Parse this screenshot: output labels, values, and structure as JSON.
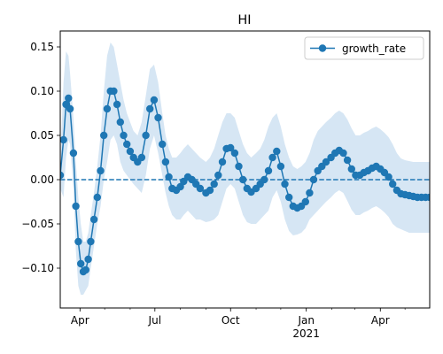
{
  "chart_data": {
    "type": "line",
    "title": "HI",
    "xlabel": "",
    "ylabel": "",
    "x_range": [
      "2020-03-08",
      "2021-05-31"
    ],
    "ylim": [
      -0.145,
      0.168
    ],
    "x_ticks": [
      {
        "date": "2020-04-01",
        "label": "Apr"
      },
      {
        "date": "2020-07-01",
        "label": "Jul"
      },
      {
        "date": "2020-10-01",
        "label": "Oct"
      },
      {
        "date": "2021-01-01",
        "label": "Jan",
        "sublabel": "2021"
      },
      {
        "date": "2021-04-01",
        "label": "Apr"
      }
    ],
    "y_ticks": [
      {
        "value": 0.15,
        "label": "0.15"
      },
      {
        "value": 0.1,
        "label": "0.10"
      },
      {
        "value": 0.05,
        "label": "0.05"
      },
      {
        "value": 0.0,
        "label": "0.00"
      },
      {
        "value": -0.05,
        "label": "−0.05"
      },
      {
        "value": -0.1,
        "label": "−0.10"
      }
    ],
    "grid": false,
    "legend_position": "top-right",
    "reference_line": {
      "y": 0,
      "style": "dashed"
    },
    "colors": {
      "line": "#1f77b4",
      "band": "#d6e6f4"
    },
    "series": [
      {
        "name": "growth_rate",
        "x": [
          "2020-03-08",
          "2020-03-12",
          "2020-03-15",
          "2020-03-18",
          "2020-03-20",
          "2020-03-24",
          "2020-03-27",
          "2020-03-30",
          "2020-04-02",
          "2020-04-05",
          "2020-04-08",
          "2020-04-11",
          "2020-04-14",
          "2020-04-18",
          "2020-04-22",
          "2020-04-26",
          "2020-04-30",
          "2020-05-04",
          "2020-05-08",
          "2020-05-12",
          "2020-05-16",
          "2020-05-20",
          "2020-05-24",
          "2020-05-28",
          "2020-06-01",
          "2020-06-05",
          "2020-06-10",
          "2020-06-15",
          "2020-06-20",
          "2020-06-25",
          "2020-06-30",
          "2020-07-05",
          "2020-07-10",
          "2020-07-14",
          "2020-07-18",
          "2020-07-22",
          "2020-07-27",
          "2020-08-01",
          "2020-08-05",
          "2020-08-10",
          "2020-08-15",
          "2020-08-20",
          "2020-08-25",
          "2020-09-01",
          "2020-09-06",
          "2020-09-11",
          "2020-09-16",
          "2020-09-21",
          "2020-09-26",
          "2020-10-01",
          "2020-10-06",
          "2020-10-11",
          "2020-10-16",
          "2020-10-21",
          "2020-10-26",
          "2020-11-01",
          "2020-11-06",
          "2020-11-11",
          "2020-11-16",
          "2020-11-21",
          "2020-11-26",
          "2020-12-01",
          "2020-12-06",
          "2020-12-11",
          "2020-12-16",
          "2020-12-21",
          "2020-12-26",
          "2020-12-31",
          "2021-01-05",
          "2021-01-10",
          "2021-01-15",
          "2021-01-20",
          "2021-01-25",
          "2021-01-31",
          "2021-02-05",
          "2021-02-10",
          "2021-02-15",
          "2021-02-20",
          "2021-02-25",
          "2021-03-02",
          "2021-03-07",
          "2021-03-12",
          "2021-03-17",
          "2021-03-22",
          "2021-03-27",
          "2021-04-01",
          "2021-04-06",
          "2021-04-11",
          "2021-04-16",
          "2021-04-21",
          "2021-04-26",
          "2021-05-01",
          "2021-05-06",
          "2021-05-11",
          "2021-05-16",
          "2021-05-21",
          "2021-05-26",
          "2021-05-31"
        ],
        "y": [
          0.005,
          0.045,
          0.085,
          0.092,
          0.08,
          0.03,
          -0.03,
          -0.07,
          -0.095,
          -0.104,
          -0.102,
          -0.09,
          -0.07,
          -0.045,
          -0.02,
          0.01,
          0.05,
          0.08,
          0.1,
          0.1,
          0.085,
          0.065,
          0.05,
          0.04,
          0.032,
          0.025,
          0.02,
          0.025,
          0.05,
          0.08,
          0.09,
          0.07,
          0.04,
          0.02,
          0.003,
          -0.01,
          -0.012,
          -0.008,
          -0.002,
          0.003,
          0.0,
          -0.005,
          -0.01,
          -0.015,
          -0.012,
          -0.005,
          0.005,
          0.02,
          0.035,
          0.036,
          0.03,
          0.015,
          0.0,
          -0.01,
          -0.014,
          -0.01,
          -0.005,
          0.0,
          0.01,
          0.025,
          0.032,
          0.015,
          -0.005,
          -0.02,
          -0.03,
          -0.032,
          -0.03,
          -0.025,
          -0.015,
          0.0,
          0.01,
          0.015,
          0.02,
          0.025,
          0.03,
          0.033,
          0.03,
          0.022,
          0.012,
          0.005,
          0.005,
          0.008,
          0.01,
          0.013,
          0.015,
          0.012,
          0.008,
          0.003,
          -0.005,
          -0.012,
          -0.016,
          -0.017,
          -0.018,
          -0.019,
          -0.02,
          -0.02,
          -0.02,
          -0.02
        ],
        "ci_upper": [
          0.02,
          0.11,
          0.145,
          0.14,
          0.12,
          0.07,
          0.02,
          -0.02,
          -0.05,
          -0.07,
          -0.07,
          -0.06,
          -0.04,
          -0.015,
          0.015,
          0.05,
          0.1,
          0.14,
          0.155,
          0.15,
          0.13,
          0.11,
          0.09,
          0.075,
          0.065,
          0.055,
          0.05,
          0.065,
          0.095,
          0.125,
          0.13,
          0.11,
          0.075,
          0.05,
          0.035,
          0.025,
          0.025,
          0.03,
          0.035,
          0.04,
          0.035,
          0.03,
          0.025,
          0.02,
          0.025,
          0.035,
          0.05,
          0.065,
          0.075,
          0.075,
          0.07,
          0.055,
          0.04,
          0.03,
          0.025,
          0.03,
          0.035,
          0.045,
          0.06,
          0.07,
          0.075,
          0.06,
          0.04,
          0.025,
          0.015,
          0.012,
          0.015,
          0.02,
          0.03,
          0.045,
          0.055,
          0.06,
          0.065,
          0.07,
          0.075,
          0.078,
          0.075,
          0.068,
          0.058,
          0.05,
          0.05,
          0.053,
          0.055,
          0.058,
          0.06,
          0.057,
          0.053,
          0.048,
          0.04,
          0.03,
          0.024,
          0.022,
          0.021,
          0.02,
          0.02,
          0.02,
          0.02,
          0.02
        ],
        "ci_lower": [
          -0.01,
          -0.02,
          0.025,
          0.045,
          0.04,
          -0.01,
          -0.08,
          -0.12,
          -0.13,
          -0.13,
          -0.125,
          -0.12,
          -0.1,
          -0.075,
          -0.05,
          -0.03,
          0.0,
          0.02,
          0.045,
          0.05,
          0.04,
          0.02,
          0.01,
          0.005,
          0.0,
          -0.005,
          -0.01,
          -0.015,
          0.005,
          0.035,
          0.05,
          0.03,
          0.005,
          -0.015,
          -0.03,
          -0.04,
          -0.045,
          -0.045,
          -0.04,
          -0.035,
          -0.04,
          -0.045,
          -0.045,
          -0.048,
          -0.047,
          -0.045,
          -0.04,
          -0.025,
          -0.01,
          -0.005,
          -0.01,
          -0.025,
          -0.04,
          -0.048,
          -0.05,
          -0.05,
          -0.045,
          -0.04,
          -0.035,
          -0.02,
          -0.012,
          -0.025,
          -0.045,
          -0.058,
          -0.063,
          -0.062,
          -0.06,
          -0.055,
          -0.045,
          -0.04,
          -0.035,
          -0.03,
          -0.025,
          -0.02,
          -0.015,
          -0.012,
          -0.015,
          -0.024,
          -0.034,
          -0.04,
          -0.04,
          -0.037,
          -0.035,
          -0.032,
          -0.03,
          -0.033,
          -0.037,
          -0.042,
          -0.05,
          -0.054,
          -0.056,
          -0.058,
          -0.06,
          -0.06,
          -0.06,
          -0.06,
          -0.06,
          -0.06
        ]
      }
    ]
  }
}
